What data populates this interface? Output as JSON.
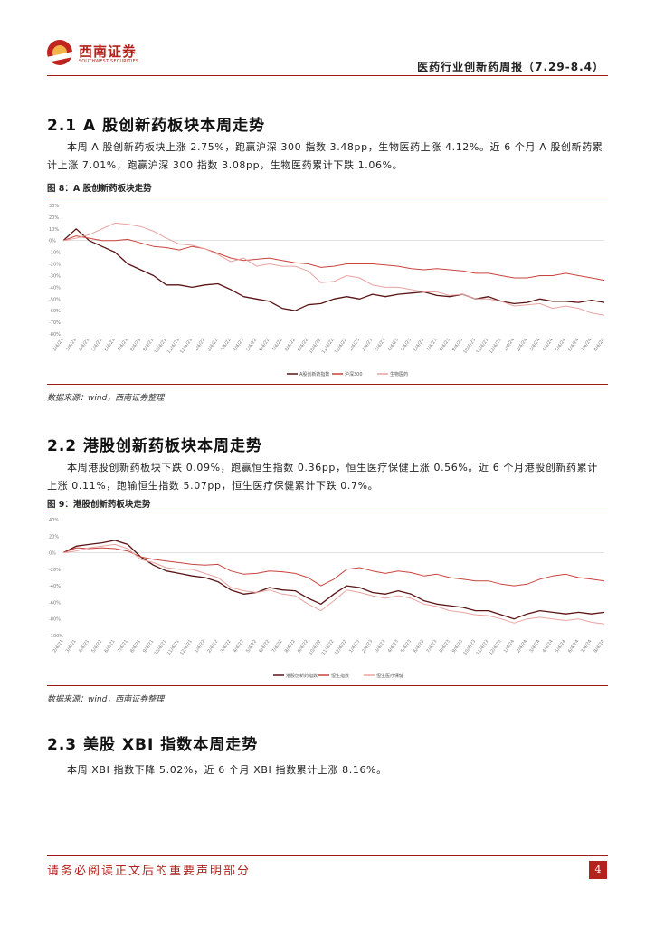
{
  "header": {
    "logo_name": "西南证券",
    "logo_sub": "SOUTHWEST SECURITIES",
    "report_title": "医药行业创新药周报（7.29-8.4）"
  },
  "sections": [
    {
      "heading": "2.1 A 股创新药板块本周走势",
      "paragraph": "本周 A 股创新药板块上涨 2.75%，跑赢沪深 300 指数 3.48pp，生物医药上涨 4.12%。近 6 个月 A 股创新药累计上涨 7.01%，跑赢沪深 300 指数 3.08pp，生物医药累计下跌 1.06%。",
      "figure_caption": "图 8：A 股创新药板块走势",
      "source": "数据来源：wind，西南证券整理"
    },
    {
      "heading": "2.2  港股创新药板块本周走势",
      "paragraph": "本周港股创新药板块下跌 0.09%，跑赢恒生指数 0.36pp，恒生医疗保健上涨 0.56%。近 6 个月港股创新药累计上涨 0.11%，跑输恒生指数 5.07pp，恒生医疗保健累计下跌 0.7%。",
      "figure_caption": "图 9：港股创新药板块走势",
      "source": "数据来源：wind，西南证券整理"
    },
    {
      "heading": "2.3  美股 XBI 指数本周走势",
      "paragraph": "本周 XBI 指数下降 5.02%，近 6 个月 XBI 指数累计上涨 8.16%。"
    }
  ],
  "footer": {
    "disclaimer": "请务必阅读正文后的重要声明部分",
    "page_number": "4"
  },
  "colors": {
    "brand_red": "#b3221c",
    "series_dark": "#5a1414",
    "series_red": "#c9433d",
    "series_pink": "#e8a3a0"
  },
  "chart_data": [
    {
      "type": "line",
      "title": "图 8：A 股创新药板块走势",
      "y_ticks": [
        "30%",
        "20%",
        "10%",
        "0%",
        "-10%",
        "-20%",
        "-30%",
        "-40%",
        "-50%",
        "-60%",
        "-70%",
        "-80%"
      ],
      "ylim": [
        -80,
        30
      ],
      "x_ticks": [
        "2/4/21",
        "3/4/21",
        "4/4/21",
        "5/4/21",
        "6/4/21",
        "7/4/21",
        "8/4/21",
        "9/4/21",
        "10/4/21",
        "11/4/21",
        "12/4/21",
        "1/4/22",
        "2/4/22",
        "3/4/22",
        "4/4/22",
        "5/4/22",
        "6/4/22",
        "7/4/22",
        "8/4/22",
        "9/4/22",
        "10/4/22",
        "11/4/22",
        "12/4/22",
        "1/4/23",
        "2/4/23",
        "3/4/23",
        "4/4/23",
        "5/4/23",
        "6/4/23",
        "7/4/23",
        "8/4/23",
        "9/4/23",
        "10/4/23",
        "11/4/23",
        "12/4/23",
        "1/4/24",
        "2/4/24",
        "3/4/24",
        "4/4/24",
        "5/4/24",
        "6/4/24",
        "7/4/24",
        "8/4/24"
      ],
      "legend": [
        "A股创新药指数",
        "沪深300",
        "生物医药"
      ],
      "legend_position": "bottom",
      "series": [
        {
          "name": "A股创新药指数",
          "color": "#5a1414",
          "values": [
            0,
            10,
            0,
            -5,
            -10,
            -20,
            -25,
            -30,
            -38,
            -38,
            -40,
            -38,
            -37,
            -42,
            -48,
            -50,
            -52,
            -58,
            -60,
            -55,
            -54,
            -50,
            -48,
            -50,
            -46,
            -48,
            -46,
            -45,
            -44,
            -47,
            -48,
            -46,
            -50,
            -48,
            -52,
            -54,
            -53,
            -50,
            -52,
            -52,
            -53,
            -51,
            -53
          ]
        },
        {
          "name": "沪深300",
          "color": "#c9433d",
          "values": [
            0,
            4,
            2,
            0,
            0,
            1,
            -2,
            -5,
            -6,
            -8,
            -5,
            -7,
            -11,
            -15,
            -17,
            -16,
            -15,
            -17,
            -19,
            -20,
            -23,
            -22,
            -20,
            -20,
            -20,
            -21,
            -22,
            -24,
            -25,
            -24,
            -25,
            -26,
            -28,
            -28,
            -30,
            -32,
            -32,
            -30,
            -30,
            -28,
            -30,
            -32,
            -34
          ]
        },
        {
          "name": "生物医药",
          "color": "#e8a3a0",
          "values": [
            0,
            2,
            5,
            10,
            15,
            14,
            12,
            8,
            2,
            -3,
            -4,
            -7,
            -12,
            -18,
            -15,
            -22,
            -20,
            -22,
            -22,
            -26,
            -36,
            -35,
            -30,
            -32,
            -38,
            -40,
            -40,
            -42,
            -44,
            -44,
            -47,
            -46,
            -50,
            -50,
            -52,
            -56,
            -55,
            -54,
            -58,
            -56,
            -58,
            -62,
            -64
          ]
        }
      ]
    },
    {
      "type": "line",
      "title": "图 9：港股创新药板块走势",
      "y_ticks": [
        "40%",
        "20%",
        "0%",
        "-20%",
        "-40%",
        "-60%",
        "-80%",
        "-100%"
      ],
      "ylim": [
        -100,
        40
      ],
      "x_ticks": [
        "2/4/21",
        "3/4/21",
        "4/4/21",
        "5/4/21",
        "6/4/21",
        "7/4/21",
        "8/4/21",
        "9/4/21",
        "10/4/21",
        "11/4/21",
        "12/4/21",
        "1/4/22",
        "2/4/22",
        "3/4/22",
        "4/4/22",
        "5/4/22",
        "6/4/22",
        "7/4/22",
        "8/4/22",
        "9/4/22",
        "10/4/22",
        "11/4/22",
        "12/4/22",
        "1/4/23",
        "2/4/23",
        "3/4/23",
        "4/4/23",
        "5/4/23",
        "6/4/23",
        "7/4/23",
        "8/4/23",
        "9/4/23",
        "10/4/23",
        "11/4/23",
        "12/4/23",
        "1/4/24",
        "2/4/24",
        "3/4/24",
        "4/4/24",
        "5/4/24",
        "6/4/24",
        "7/4/24",
        "8/4/24"
      ],
      "legend": [
        "港股创新药指数",
        "恒生指数",
        "恒生医疗保健"
      ],
      "legend_position": "bottom",
      "series": [
        {
          "name": "港股创新药指数",
          "color": "#5a1414",
          "values": [
            0,
            8,
            10,
            12,
            15,
            10,
            -5,
            -15,
            -22,
            -25,
            -28,
            -30,
            -35,
            -45,
            -50,
            -48,
            -42,
            -45,
            -46,
            -55,
            -62,
            -50,
            -40,
            -42,
            -48,
            -50,
            -46,
            -50,
            -58,
            -62,
            -64,
            -66,
            -70,
            -70,
            -75,
            -80,
            -74,
            -70,
            -72,
            -74,
            -72,
            -74,
            -72
          ]
        },
        {
          "name": "恒生指数",
          "color": "#c9433d",
          "values": [
            0,
            6,
            5,
            6,
            5,
            2,
            -5,
            -8,
            -10,
            -12,
            -14,
            -15,
            -14,
            -22,
            -26,
            -25,
            -22,
            -23,
            -25,
            -30,
            -40,
            -32,
            -20,
            -18,
            -22,
            -25,
            -22,
            -24,
            -28,
            -26,
            -30,
            -32,
            -34,
            -34,
            -38,
            -40,
            -38,
            -32,
            -28,
            -26,
            -30,
            -32,
            -34
          ]
        },
        {
          "name": "恒生医疗保健",
          "color": "#e8a3a0",
          "values": [
            0,
            2,
            6,
            8,
            10,
            5,
            -8,
            -12,
            -18,
            -20,
            -20,
            -25,
            -30,
            -42,
            -46,
            -48,
            -45,
            -50,
            -52,
            -62,
            -70,
            -58,
            -45,
            -48,
            -52,
            -55,
            -52,
            -55,
            -62,
            -65,
            -70,
            -72,
            -75,
            -76,
            -80,
            -85,
            -80,
            -78,
            -80,
            -82,
            -80,
            -84,
            -86
          ]
        }
      ]
    }
  ]
}
